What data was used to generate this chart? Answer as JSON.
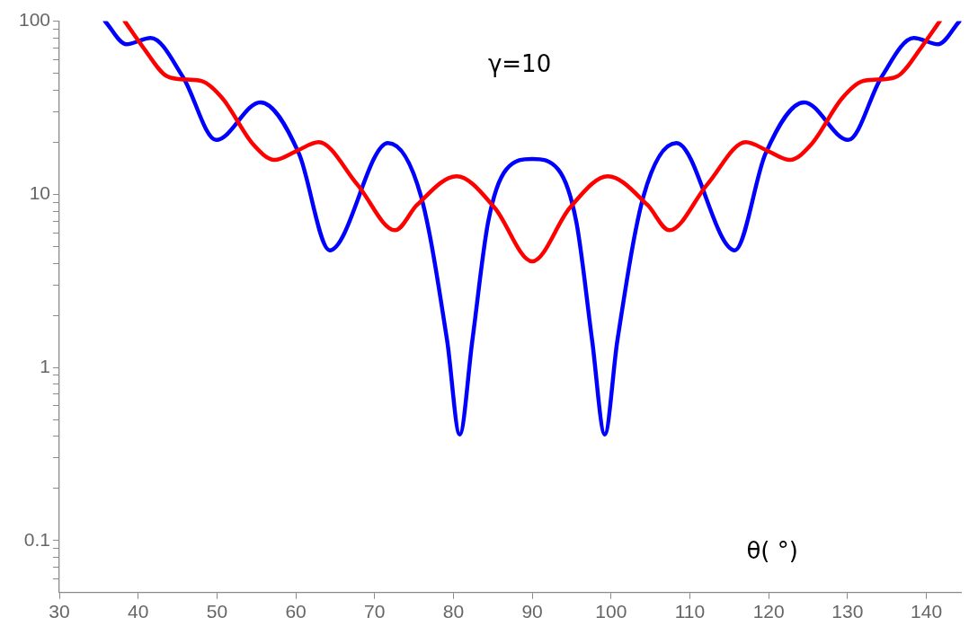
{
  "chart_data": {
    "type": "line",
    "xlabel": "θ( °)",
    "annotations": [
      "γ=10"
    ],
    "log": "y",
    "grid": false,
    "legend": false,
    "marker": "none",
    "line_style": "solid",
    "xlim": [
      30,
      144.5
    ],
    "xticks": [
      30,
      40,
      50,
      60,
      70,
      80,
      90,
      100,
      110,
      120,
      130,
      140
    ],
    "ylim": [
      0.05,
      100
    ],
    "yticks": [
      {
        "value": 0.06,
        "label": null
      },
      {
        "value": 0.07,
        "label": null
      },
      {
        "value": 0.08,
        "label": null
      },
      {
        "value": 0.09,
        "label": null
      },
      0.1,
      {
        "value": 0.2,
        "label": null
      },
      {
        "value": 0.3,
        "label": null
      },
      {
        "value": 0.4,
        "label": null
      },
      {
        "value": 0.5,
        "label": null
      },
      {
        "value": 0.6,
        "label": null
      },
      {
        "value": 0.7,
        "label": null
      },
      {
        "value": 0.8,
        "label": null
      },
      {
        "value": 0.9,
        "label": null
      },
      1,
      {
        "value": 2,
        "label": null
      },
      {
        "value": 3,
        "label": null
      },
      {
        "value": 4,
        "label": null
      },
      {
        "value": 5,
        "label": null
      },
      {
        "value": 6,
        "label": null
      },
      {
        "value": 7,
        "label": null
      },
      {
        "value": 8,
        "label": null
      },
      {
        "value": 9,
        "label": null
      },
      10,
      {
        "value": 20,
        "label": null
      },
      {
        "value": 30,
        "label": null
      },
      {
        "value": 40,
        "label": null
      },
      {
        "value": 50,
        "label": null
      },
      {
        "value": 60,
        "label": null
      },
      {
        "value": 70,
        "label": null
      },
      {
        "value": 80,
        "label": null
      },
      {
        "value": 90,
        "label": null
      },
      100
    ],
    "series": [
      {
        "color": "#ff0000",
        "x": [
          38.3,
          40.6,
          43.7,
          46.1,
          48.1,
          50.7,
          54.6,
          57.3,
          60.1,
          62.9,
          67.8,
          72.6,
          75.4,
          80.4,
          85.2,
          90,
          94.8,
          99.6,
          104.6,
          107.4,
          112.2,
          117.1,
          119.9,
          122.7,
          125.4,
          129.3,
          131.9,
          133.9,
          136.3,
          139.4,
          141.7
        ],
        "values": [
          100,
          71,
          48,
          46,
          45,
          35.8,
          19.4,
          15.8,
          17.8,
          20,
          11.4,
          6.2,
          8.7,
          12.7,
          8.4,
          4.1,
          8.4,
          12.7,
          8.7,
          6.2,
          11.4,
          20,
          17.8,
          15.8,
          19.4,
          35.8,
          45,
          46,
          48,
          71,
          100
        ]
      },
      {
        "color": "#0000ff",
        "x": [
          35.8,
          38.5,
          41.6,
          45.7,
          49.9,
          55.5,
          60.4,
          64.3,
          71.7,
          75.9,
          79.2,
          80.8,
          82.4,
          84.4,
          86.7,
          90,
          93.3,
          95.6,
          97.6,
          99.2,
          100.8,
          104.1,
          108.3,
          115.7,
          119.6,
          124.5,
          130.1,
          134.3,
          138.4,
          141.5,
          144.2
        ],
        "values": [
          100,
          73.6,
          80,
          47.5,
          20.6,
          34,
          17.2,
          4.75,
          19.8,
          9.7,
          1.43,
          0.41,
          1.43,
          6.9,
          13.9,
          16,
          13.9,
          6.9,
          1.43,
          0.41,
          1.43,
          9.7,
          19.8,
          4.75,
          17.2,
          34,
          20.6,
          47.5,
          80,
          73.6,
          100
        ]
      }
    ]
  }
}
